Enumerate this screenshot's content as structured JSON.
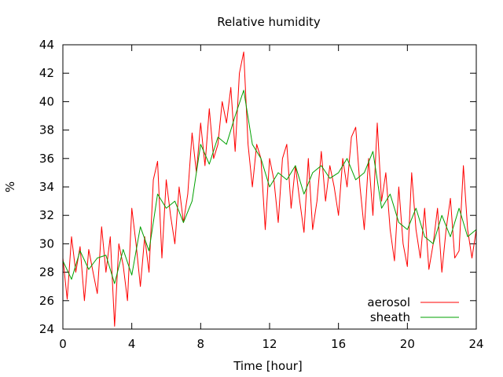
{
  "chart_data": {
    "type": "line",
    "title": "Relative humidity",
    "xlabel": "Time [hour]",
    "ylabel": "%",
    "xlim": [
      0,
      24
    ],
    "ylim": [
      24,
      44
    ],
    "xticks": [
      0,
      4,
      8,
      12,
      16,
      20,
      24
    ],
    "yticks": [
      24,
      26,
      28,
      30,
      32,
      34,
      36,
      38,
      40,
      42,
      44
    ],
    "grid": false,
    "legend_position": "bottom-right",
    "series": [
      {
        "name": "aerosol",
        "color": "#ff0000",
        "x": [
          0,
          0.25,
          0.5,
          0.75,
          1,
          1.25,
          1.5,
          1.75,
          2,
          2.25,
          2.5,
          2.75,
          3,
          3.25,
          3.5,
          3.75,
          4,
          4.25,
          4.5,
          4.75,
          5,
          5.25,
          5.5,
          5.75,
          6,
          6.25,
          6.5,
          6.75,
          7,
          7.25,
          7.5,
          7.75,
          8,
          8.25,
          8.5,
          8.75,
          9,
          9.25,
          9.5,
          9.75,
          10,
          10.25,
          10.5,
          10.75,
          11,
          11.25,
          11.5,
          11.75,
          12,
          12.25,
          12.5,
          12.75,
          13,
          13.25,
          13.5,
          13.75,
          14,
          14.25,
          14.5,
          14.75,
          15,
          15.25,
          15.5,
          15.75,
          16,
          16.25,
          16.5,
          16.75,
          17,
          17.25,
          17.5,
          17.75,
          18,
          18.25,
          18.5,
          18.75,
          19,
          19.25,
          19.5,
          19.75,
          20,
          20.25,
          20.5,
          20.75,
          21,
          21.25,
          21.5,
          21.75,
          22,
          22.25,
          22.5,
          22.75,
          23,
          23.25,
          23.5,
          23.75,
          24
        ],
        "y": [
          29,
          26.1,
          30.5,
          28,
          29.8,
          26,
          29.6,
          28,
          26.5,
          31.2,
          28,
          30.5,
          24.2,
          30,
          28.5,
          26,
          32.5,
          30,
          27,
          30.5,
          28,
          34.5,
          35.8,
          29,
          34.5,
          32,
          30,
          34,
          31.5,
          33.5,
          37.8,
          35,
          38.5,
          35.5,
          39.5,
          36,
          37,
          40,
          38.5,
          41,
          36.5,
          42,
          43.5,
          37,
          34,
          37,
          36,
          31,
          36,
          34.5,
          31.5,
          36,
          37,
          32.5,
          35.5,
          33,
          30.8,
          36,
          31,
          33,
          36.5,
          33,
          35.5,
          34,
          32,
          36,
          34,
          37.5,
          38.2,
          34,
          31,
          36,
          32,
          38.5,
          33,
          35,
          31,
          28.8,
          34,
          30,
          28.4,
          35,
          31,
          29,
          32.5,
          28.2,
          30,
          32.5,
          28,
          31,
          33.2,
          29,
          29.5,
          35.5,
          31,
          29,
          31
        ]
      },
      {
        "name": "sheath",
        "color": "#00a000",
        "x": [
          0,
          0.5,
          1,
          1.5,
          2,
          2.5,
          3,
          3.5,
          4,
          4.5,
          5,
          5.5,
          6,
          6.5,
          7,
          7.5,
          8,
          8.5,
          9,
          9.5,
          10,
          10.5,
          11,
          11.5,
          12,
          12.5,
          13,
          13.5,
          14,
          14.5,
          15,
          15.5,
          16,
          16.5,
          17,
          17.5,
          18,
          18.5,
          19,
          19.5,
          20,
          20.5,
          21,
          21.5,
          22,
          22.5,
          23,
          23.5,
          24
        ],
        "y": [
          28.8,
          27.5,
          29.5,
          28.2,
          29,
          29.2,
          27.2,
          29.6,
          27.8,
          31.2,
          29.5,
          33.5,
          32.5,
          33,
          31.5,
          33,
          37,
          35.6,
          37.5,
          37,
          39,
          40.8,
          37,
          36,
          34,
          35,
          34.5,
          35.5,
          33.5,
          35,
          35.5,
          34.6,
          35,
          36,
          34.5,
          35,
          36.5,
          32.5,
          33.5,
          31.5,
          31,
          32.5,
          30.5,
          30,
          32,
          30.5,
          32.5,
          30.5,
          31
        ]
      }
    ]
  }
}
